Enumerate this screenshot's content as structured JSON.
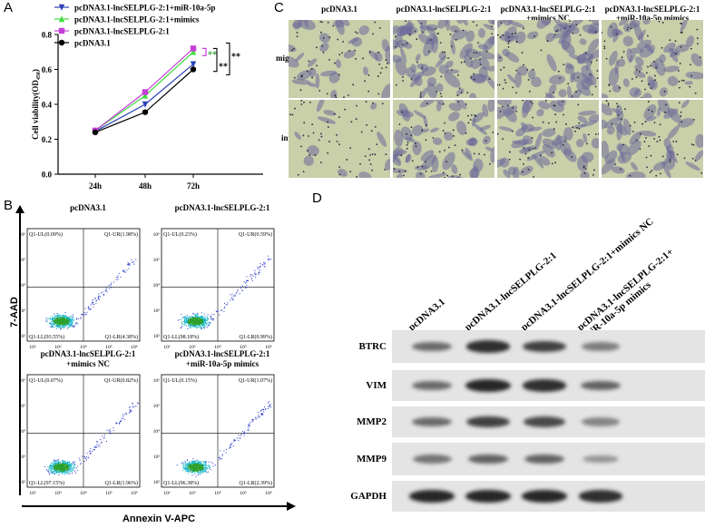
{
  "panels": {
    "a": "A",
    "b": "B",
    "c": "C",
    "d": "D"
  },
  "chart_data": {
    "type": "line",
    "x": [
      "24h",
      "48h",
      "72h"
    ],
    "ylabel": "Cell viability(OD",
    "ylabel_sub": "450",
    "ylabel_close": ")",
    "ylim": [
      0,
      0.8
    ],
    "yticks": [
      "0.0",
      "0.2",
      "0.4",
      "0.6",
      "0.8"
    ],
    "legend_position": "top-left",
    "series": [
      {
        "name": "pcDNA3.1-lncSELPLG-2:1+miR-10a-5p",
        "color": "#2b3fb5",
        "marker": "triangle-down",
        "values": [
          0.245,
          0.4,
          0.63
        ]
      },
      {
        "name": "pcDNA3.1-lncSELPLG-2:1+mimics",
        "color": "#3fdc3f",
        "marker": "triangle-up",
        "values": [
          0.25,
          0.45,
          0.7
        ]
      },
      {
        "name": "pcDNA3.1-lncSELPLG-2:1",
        "color": "#c53fd6",
        "marker": "square",
        "values": [
          0.25,
          0.47,
          0.72
        ]
      },
      {
        "name": "pcDNA3.1",
        "color": "#000000",
        "marker": "circle",
        "values": [
          0.24,
          0.355,
          0.6
        ]
      }
    ],
    "annotations": [
      "**",
      "**",
      "**"
    ]
  },
  "panel_c": {
    "columns": [
      "pcDNA3.1",
      "pcDNA3.1-lncSELPLG-2:1",
      "pcDNA3.1-lncSELPLG-2:1\n+mimics NC",
      "pcDNA3.1-lncSELPLG-2:1\n+miR-10a-5p mimics"
    ],
    "rows": [
      "migration",
      "invasion"
    ]
  },
  "panel_b": {
    "ylabel": "7-AAD",
    "xlabel": "Annexin V-APC",
    "plots": [
      {
        "title": "pcDNA3.1",
        "ul": "Q1-UL(0.09%)",
        "ur": "Q1-UR(1.98%)",
        "ll": "Q1-LL(93.55%)",
        "lr": "Q1-LR(4.38%)"
      },
      {
        "title": "pcDNA3.1-lncSELPLG-2:1",
        "ul": "Q1-UL(0.23%)",
        "ur": "Q1-UR(0.59%)",
        "ll": "Q1-LL(98.18%)",
        "lr": "Q1-LR(0.99%)"
      },
      {
        "title": "pcDNA3.1-lncSELPLG-2:1\n+mimics NC",
        "ul": "Q1-UL(0.07%)",
        "ur": "Q1-UR(0.82%)",
        "ll": "Q1-LL(97.15%)",
        "lr": "Q1-LR(1.96%)"
      },
      {
        "title": "pcDNA3.1-lncSELPLG-2:1\n+miR-10a-5p mimics",
        "ul": "Q1-UL(0.15%)",
        "ur": "Q1-UR(1.07%)",
        "ll": "Q1-LL(96.38%)",
        "lr": "Q1-LR(2.39%)"
      }
    ],
    "xticks": [
      "10²",
      "10³",
      "10⁴",
      "10⁵",
      "10⁶"
    ],
    "yticks": [
      "10⁶",
      "10⁵",
      "10⁴",
      "10³",
      "10²"
    ]
  },
  "panel_d": {
    "lanes": [
      "pcDNA3.1",
      "pcDNA3.1-lncSELPLG-2:1",
      "pcDNA3.1-lncSELPLG-2:1+mimics NC",
      "pcDNA3.1-lncSELPLG-2:1+\nmiR-10a-5p mimics"
    ],
    "proteins": [
      {
        "name": "BTRC",
        "intensity": [
          0.55,
          0.9,
          0.8,
          0.45
        ]
      },
      {
        "name": "VIM",
        "intensity": [
          0.55,
          0.95,
          0.9,
          0.6
        ]
      },
      {
        "name": "MMP2",
        "intensity": [
          0.55,
          0.8,
          0.75,
          0.4
        ]
      },
      {
        "name": "MMP9",
        "intensity": [
          0.5,
          0.6,
          0.6,
          0.3
        ]
      },
      {
        "name": "GAPDH",
        "intensity": [
          0.95,
          0.95,
          0.95,
          0.9
        ]
      }
    ]
  }
}
